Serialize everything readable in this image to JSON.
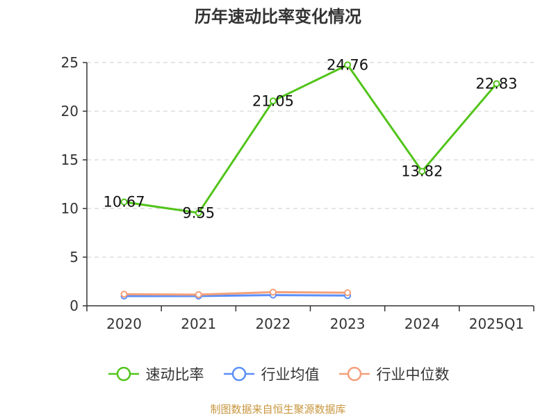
{
  "title": "历年速动比率变化情况",
  "source": "制图数据来自恒生聚源数据库",
  "chart_data": {
    "type": "line",
    "categories": [
      "2020",
      "2021",
      "2022",
      "2023",
      "2024",
      "2025Q1"
    ],
    "ylim": [
      0,
      25
    ],
    "yticks": [
      0,
      5,
      10,
      15,
      20,
      25
    ],
    "grid": true,
    "legend_position": "bottom",
    "series": [
      {
        "name": "速动比率",
        "color": "#52c41a",
        "values": [
          10.67,
          9.55,
          21.05,
          24.76,
          13.82,
          22.83
        ],
        "show_labels": true
      },
      {
        "name": "行业均值",
        "color": "#5b8ff9",
        "values": [
          1.0,
          1.0,
          1.1,
          1.05,
          null,
          null
        ],
        "show_labels": false
      },
      {
        "name": "行业中位数",
        "color": "#f4a07a",
        "values": [
          1.2,
          1.15,
          1.4,
          1.35,
          null,
          null
        ],
        "show_labels": false
      }
    ]
  }
}
